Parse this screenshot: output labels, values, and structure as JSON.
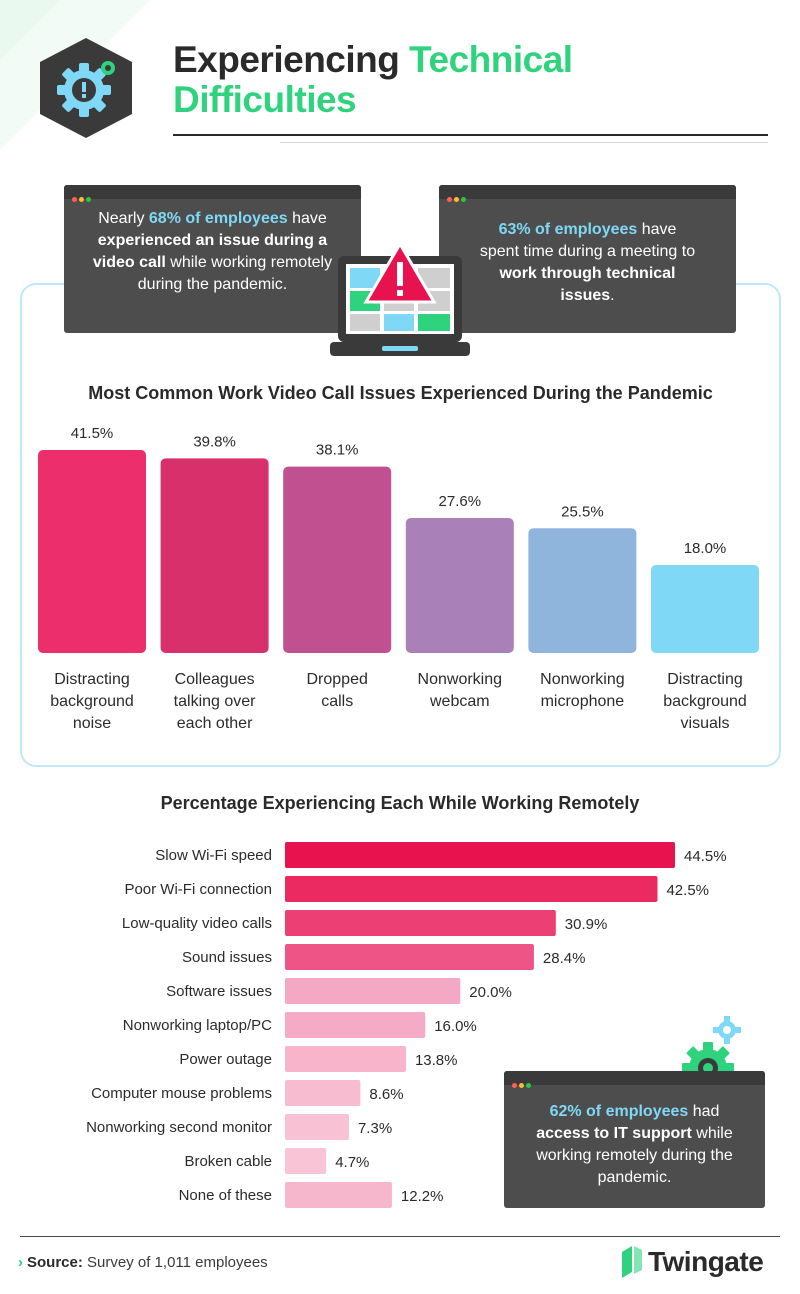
{
  "header": {
    "title_part1": "Experiencing",
    "title_part2": "Technical",
    "title_part3": "Difficulties"
  },
  "callouts": {
    "left": {
      "t1": "Nearly ",
      "t2": "68% of employees",
      "t3": " have ",
      "t4": "experienced an issue during a video call",
      "t5": " while working remotely during the pandemic."
    },
    "right": {
      "t1": "63% of employees",
      "t2": " have spent time during a meeting to ",
      "t3": "work through technical issues",
      "t4": "."
    },
    "bottom": {
      "t1": "62% of employees",
      "t2": " had ",
      "t3": "access to IT support",
      "t4": " while working remotely during the pandemic."
    }
  },
  "colors": {
    "accent_green": "#2fd37d",
    "accent_blue": "#7fd8f5",
    "window_bg": "#4d4d4d",
    "dot_red": "#ff5f57",
    "dot_yellow": "#febc2e",
    "dot_green": "#28c840"
  },
  "icons": {
    "badge": "gear-warning-shield-icon",
    "laptop": "laptop-warning-icon",
    "gear": "gear-icon",
    "logo": "twingate-logo-icon"
  },
  "chart_data": [
    {
      "type": "bar",
      "title": "Most Common Work Video Call Issues Experienced During the Pandemic",
      "categories": [
        "Distracting background noise",
        "Colleagues talking over each other",
        "Dropped calls",
        "Nonworking webcam",
        "Nonworking microphone",
        "Distracting background visuals"
      ],
      "category_lines": [
        [
          "Distracting",
          "background",
          "noise"
        ],
        [
          "Colleagues",
          "talking over",
          "each other"
        ],
        [
          "Dropped",
          "calls"
        ],
        [
          "Nonworking",
          "webcam"
        ],
        [
          "Nonworking",
          "microphone"
        ],
        [
          "Distracting",
          "background",
          "visuals"
        ]
      ],
      "values": [
        41.5,
        39.8,
        38.1,
        27.6,
        25.5,
        18.0
      ],
      "value_labels": [
        "41.5%",
        "39.8%",
        "38.1%",
        "27.6%",
        "25.5%",
        "18.0%"
      ],
      "bar_colors": [
        "#ec2e6c",
        "#d8306b",
        "#c0508f",
        "#a981b8",
        "#8fb5dc",
        "#7fd8f5"
      ],
      "orientation": "vertical",
      "grid": false
    },
    {
      "type": "bar",
      "title": "Percentage Experiencing Each While Working Remotely",
      "categories": [
        "Slow Wi-Fi speed",
        "Poor Wi-Fi connection",
        "Low-quality video calls",
        "Sound issues",
        "Software issues",
        "Nonworking laptop/PC",
        "Power outage",
        "Computer mouse problems",
        "Nonworking second monitor",
        "Broken cable",
        "None of these"
      ],
      "values": [
        44.5,
        42.5,
        30.9,
        28.4,
        20.0,
        16.0,
        13.8,
        8.6,
        7.3,
        4.7,
        12.2
      ],
      "value_labels": [
        "44.5%",
        "42.5%",
        "30.9%",
        "28.4%",
        "20.0%",
        "16.0%",
        "13.8%",
        "8.6%",
        "7.3%",
        "4.7%",
        "12.2%"
      ],
      "bar_colors": [
        "#e8124f",
        "#ea2a60",
        "#ec3f73",
        "#ee5586",
        "#f5a8c3",
        "#f5abc5",
        "#f7b4cb",
        "#f7bccf",
        "#f8c2d4",
        "#f8c4d6",
        "#f6b6cc"
      ],
      "orientation": "horizontal",
      "grid": false
    }
  ],
  "footer": {
    "source_chevron": "›",
    "source_label": "Source:",
    "source_text": " Survey of 1,011 employees",
    "brand": "Twingate"
  }
}
